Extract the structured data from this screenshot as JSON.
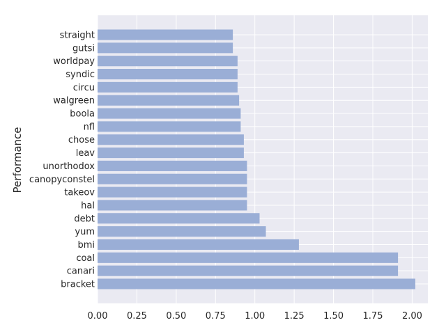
{
  "chart_data": {
    "type": "bar",
    "orientation": "horizontal",
    "title": "",
    "xlabel": "",
    "ylabel": "Performance",
    "xlim": [
      0,
      2.1
    ],
    "xticks": [
      0.0,
      0.25,
      0.5,
      0.75,
      1.0,
      1.25,
      1.5,
      1.75,
      2.0
    ],
    "xtick_labels": [
      "0.00",
      "0.25",
      "0.50",
      "0.75",
      "1.00",
      "1.25",
      "1.50",
      "1.75",
      "2.00"
    ],
    "grid": true,
    "bar_color": "#9aaed6",
    "background_color": "#eaeaf2",
    "categories": [
      "bracket",
      "canari",
      "coal",
      "bmi",
      "yum",
      "debt",
      "hal",
      "takeov",
      "canopyconstel",
      "unorthodox",
      "leav",
      "chose",
      "nfl",
      "boola",
      "walgreen",
      "circu",
      "syndic",
      "worldpay",
      "gutsi",
      "straight"
    ],
    "values": [
      2.02,
      1.91,
      1.91,
      1.28,
      1.07,
      1.03,
      0.95,
      0.95,
      0.95,
      0.95,
      0.93,
      0.93,
      0.91,
      0.91,
      0.9,
      0.89,
      0.89,
      0.89,
      0.86,
      0.86
    ]
  }
}
